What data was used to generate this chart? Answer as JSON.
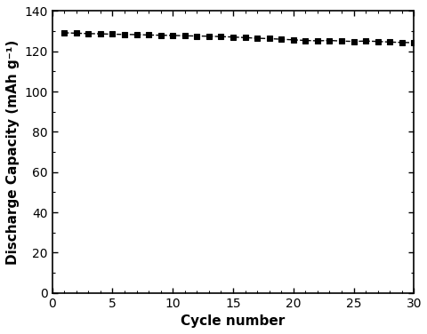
{
  "x": [
    1,
    2,
    3,
    4,
    5,
    6,
    7,
    8,
    9,
    10,
    11,
    12,
    13,
    14,
    15,
    16,
    17,
    18,
    19,
    20,
    21,
    22,
    23,
    24,
    25,
    26,
    27,
    28,
    29,
    30
  ],
  "y": [
    129.2,
    129.0,
    128.8,
    128.7,
    128.5,
    128.4,
    128.3,
    128.1,
    128.0,
    127.9,
    127.7,
    127.6,
    127.5,
    127.3,
    127.1,
    126.8,
    126.5,
    126.3,
    126.0,
    125.7,
    125.4,
    125.2,
    125.4,
    125.1,
    124.9,
    125.1,
    124.9,
    124.6,
    124.4,
    124.3
  ],
  "xlabel": "Cycle number",
  "ylabel": "Discharge Capacity (mAh g⁻¹)",
  "xlim": [
    0,
    30
  ],
  "ylim": [
    0,
    140
  ],
  "xticks": [
    0,
    5,
    10,
    15,
    20,
    25,
    30
  ],
  "yticks": [
    0,
    20,
    40,
    60,
    80,
    100,
    120,
    140
  ],
  "line_color": "#000000",
  "marker": "s",
  "linestyle": "--",
  "markersize": 4.5,
  "linewidth": 1.0,
  "background_color": "#ffffff",
  "tick_fontsize": 10,
  "label_fontsize": 11,
  "minor_xtick_locs": [
    1,
    2,
    3,
    4,
    6,
    7,
    8,
    9,
    11,
    12,
    13,
    14,
    16,
    17,
    18,
    19,
    21,
    22,
    23,
    24,
    26,
    27,
    28,
    29
  ],
  "minor_ytick_locs": [
    10,
    30,
    50,
    70,
    90,
    110,
    130
  ]
}
